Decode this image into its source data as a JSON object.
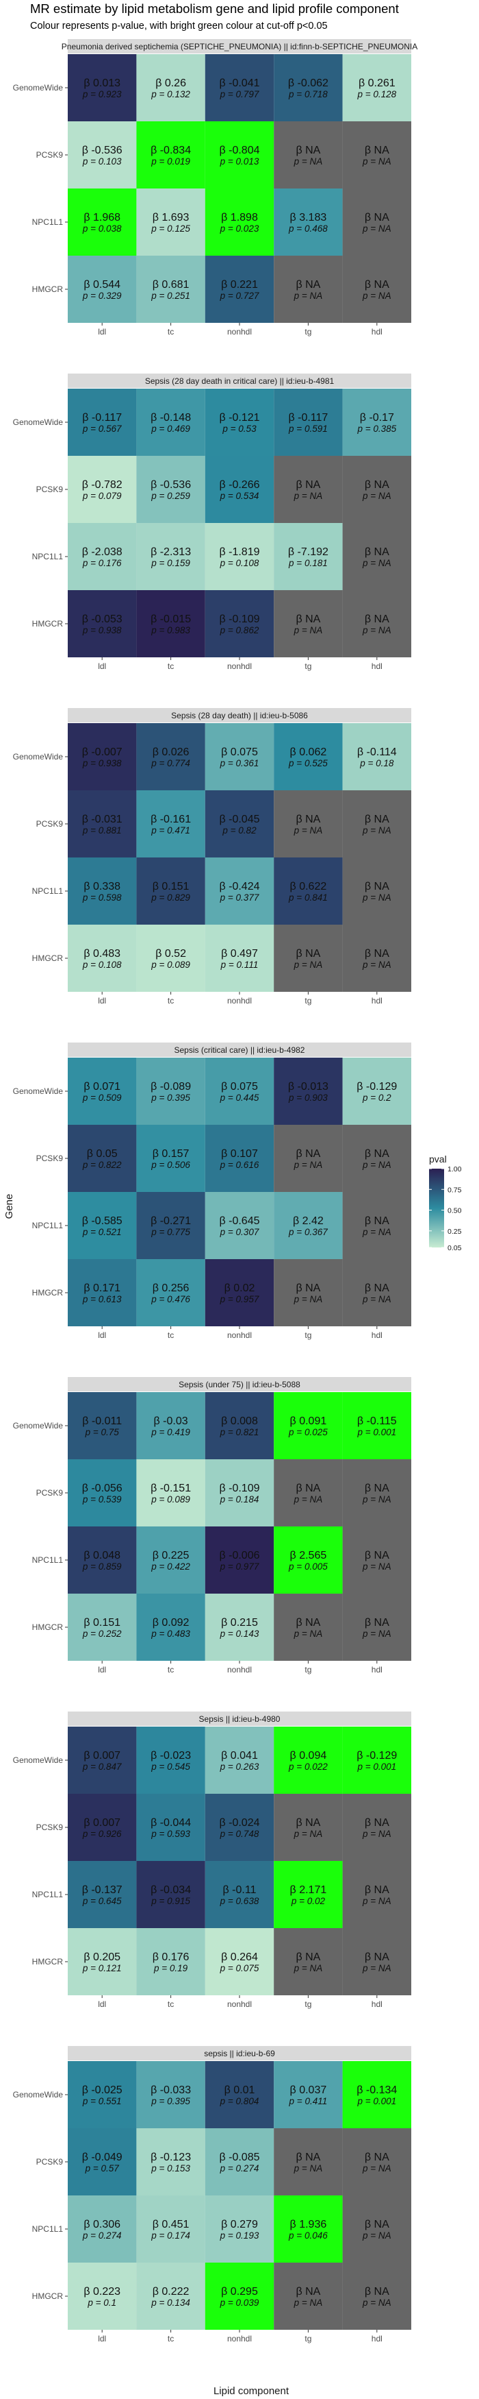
{
  "title": "MR estimate by lipid metabolism gene and lipid profile component",
  "subtitle": "Colour represents p-value, with bright green colour at cut-off p<0.05",
  "chart_data": {
    "type": "heatmap",
    "xlabel": "Lipid component",
    "ylabel": "Gene",
    "x_categories": [
      "ldl",
      "tc",
      "nonhdl",
      "tg",
      "hdl"
    ],
    "y_categories": [
      "GenomeWide",
      "PCSK9",
      "NPC1L1",
      "HMGCR"
    ],
    "cutoff": 0.05,
    "legend": {
      "title": "pval",
      "ticks": [
        "1.00",
        "0.75",
        "0.50",
        "0.25",
        "0.05"
      ],
      "colors": {
        "low": "#2b1f52",
        "mid": "#2d8ca0",
        "high": "#c8ecd2",
        "cutoff": "#1aff0a",
        "na": "#666666"
      }
    },
    "panels": [
      {
        "strip": "Pneumonia derived septichemia (SEPTICHE_PNEUMONIA) || id:finn-b-SEPTICHE_PNEUMONIA",
        "cells": [
          [
            [
              "β 0.013",
              "p = 0.923",
              0.923
            ],
            [
              "β 0.26",
              "p = 0.132",
              0.132
            ],
            [
              "β -0.041",
              "p = 0.797",
              0.797
            ],
            [
              "β -0.062",
              "p = 0.718",
              0.718
            ],
            [
              "β 0.261",
              "p = 0.128",
              0.128
            ]
          ],
          [
            [
              "β -0.536",
              "p = 0.103",
              0.103
            ],
            [
              "β -0.834",
              "p = 0.019",
              0.019
            ],
            [
              "β -0.804",
              "p = 0.013",
              0.013
            ],
            [
              "β NA",
              "p = NA",
              null
            ],
            [
              "β NA",
              "p = NA",
              null
            ]
          ],
          [
            [
              "β 1.968",
              "p = 0.038",
              0.038
            ],
            [
              "β 1.693",
              "p = 0.125",
              0.125
            ],
            [
              "β 1.898",
              "p = 0.023",
              0.023
            ],
            [
              "β 3.183",
              "p = 0.468",
              0.468
            ],
            [
              "β NA",
              "p = NA",
              null
            ]
          ],
          [
            [
              "β 0.544",
              "p = 0.329",
              0.329
            ],
            [
              "β 0.681",
              "p = 0.251",
              0.251
            ],
            [
              "β 0.221",
              "p = 0.727",
              0.727
            ],
            [
              "β NA",
              "p = NA",
              null
            ],
            [
              "β NA",
              "p = NA",
              null
            ]
          ]
        ]
      },
      {
        "strip": "Sepsis (28 day death in critical care) || id:ieu-b-4981",
        "cells": [
          [
            [
              "β -0.117",
              "p = 0.567",
              0.567
            ],
            [
              "β -0.148",
              "p = 0.469",
              0.469
            ],
            [
              "β -0.121",
              "p = 0.53",
              0.53
            ],
            [
              "β -0.117",
              "p = 0.591",
              0.591
            ],
            [
              "β -0.17",
              "p = 0.385",
              0.385
            ]
          ],
          [
            [
              "β -0.782",
              "p = 0.079",
              0.079
            ],
            [
              "β -0.536",
              "p = 0.259",
              0.259
            ],
            [
              "β -0.266",
              "p = 0.534",
              0.534
            ],
            [
              "β NA",
              "p = NA",
              null
            ],
            [
              "β NA",
              "p = NA",
              null
            ]
          ],
          [
            [
              "β -2.038",
              "p = 0.176",
              0.176
            ],
            [
              "β -2.313",
              "p = 0.159",
              0.159
            ],
            [
              "β -1.819",
              "p = 0.108",
              0.108
            ],
            [
              "β -7.192",
              "p = 0.181",
              0.181
            ],
            [
              "β NA",
              "p = NA",
              null
            ]
          ],
          [
            [
              "β -0.053",
              "p = 0.938",
              0.938
            ],
            [
              "β -0.015",
              "p = 0.983",
              0.983
            ],
            [
              "β -0.109",
              "p = 0.862",
              0.862
            ],
            [
              "β NA",
              "p = NA",
              null
            ],
            [
              "β NA",
              "p = NA",
              null
            ]
          ]
        ]
      },
      {
        "strip": "Sepsis (28 day death) || id:ieu-b-5086",
        "cells": [
          [
            [
              "β -0.007",
              "p = 0.938",
              0.938
            ],
            [
              "β 0.026",
              "p = 0.774",
              0.774
            ],
            [
              "β 0.075",
              "p = 0.361",
              0.361
            ],
            [
              "β 0.062",
              "p = 0.525",
              0.525
            ],
            [
              "β -0.114",
              "p = 0.18",
              0.18
            ]
          ],
          [
            [
              "β -0.031",
              "p = 0.881",
              0.881
            ],
            [
              "β -0.161",
              "p = 0.471",
              0.471
            ],
            [
              "β -0.045",
              "p = 0.82",
              0.82
            ],
            [
              "β NA",
              "p = NA",
              null
            ],
            [
              "β NA",
              "p = NA",
              null
            ]
          ],
          [
            [
              "β 0.338",
              "p = 0.598",
              0.598
            ],
            [
              "β 0.151",
              "p = 0.829",
              0.829
            ],
            [
              "β -0.424",
              "p = 0.377",
              0.377
            ],
            [
              "β 0.622",
              "p = 0.841",
              0.841
            ],
            [
              "β NA",
              "p = NA",
              null
            ]
          ],
          [
            [
              "β 0.483",
              "p = 0.108",
              0.108
            ],
            [
              "β 0.52",
              "p = 0.089",
              0.089
            ],
            [
              "β 0.497",
              "p = 0.111",
              0.111
            ],
            [
              "β NA",
              "p = NA",
              null
            ],
            [
              "β NA",
              "p = NA",
              null
            ]
          ]
        ]
      },
      {
        "strip": "Sepsis (critical care) || id:ieu-b-4982",
        "cells": [
          [
            [
              "β 0.071",
              "p = 0.509",
              0.509
            ],
            [
              "β -0.089",
              "p = 0.395",
              0.395
            ],
            [
              "β 0.075",
              "p = 0.445",
              0.445
            ],
            [
              "β -0.013",
              "p = 0.903",
              0.903
            ],
            [
              "β -0.129",
              "p = 0.2",
              0.2
            ]
          ],
          [
            [
              "β 0.05",
              "p = 0.822",
              0.822
            ],
            [
              "β 0.157",
              "p = 0.506",
              0.506
            ],
            [
              "β 0.107",
              "p = 0.616",
              0.616
            ],
            [
              "β NA",
              "p = NA",
              null
            ],
            [
              "β NA",
              "p = NA",
              null
            ]
          ],
          [
            [
              "β -0.585",
              "p = 0.521",
              0.521
            ],
            [
              "β -0.271",
              "p = 0.775",
              0.775
            ],
            [
              "β -0.645",
              "p = 0.307",
              0.307
            ],
            [
              "β 2.42",
              "p = 0.367",
              0.367
            ],
            [
              "β NA",
              "p = NA",
              null
            ]
          ],
          [
            [
              "β 0.171",
              "p = 0.613",
              0.613
            ],
            [
              "β 0.256",
              "p = 0.476",
              0.476
            ],
            [
              "β 0.02",
              "p = 0.957",
              0.957
            ],
            [
              "β NA",
              "p = NA",
              null
            ],
            [
              "β NA",
              "p = NA",
              null
            ]
          ]
        ]
      },
      {
        "strip": "Sepsis (under 75) || id:ieu-b-5088",
        "cells": [
          [
            [
              "β -0.011",
              "p = 0.75",
              0.75
            ],
            [
              "β -0.03",
              "p = 0.419",
              0.419
            ],
            [
              "β 0.008",
              "p = 0.821",
              0.821
            ],
            [
              "β 0.091",
              "p = 0.025",
              0.025
            ],
            [
              "β -0.115",
              "p = 0.001",
              0.001
            ]
          ],
          [
            [
              "β -0.056",
              "p = 0.539",
              0.539
            ],
            [
              "β -0.151",
              "p = 0.089",
              0.089
            ],
            [
              "β -0.109",
              "p = 0.184",
              0.184
            ],
            [
              "β NA",
              "p = NA",
              null
            ],
            [
              "β NA",
              "p = NA",
              null
            ]
          ],
          [
            [
              "β 0.048",
              "p = 0.859",
              0.859
            ],
            [
              "β 0.225",
              "p = 0.422",
              0.422
            ],
            [
              "β -0.006",
              "p = 0.977",
              0.977
            ],
            [
              "β 2.565",
              "p = 0.005",
              0.005
            ],
            [
              "β NA",
              "p = NA",
              null
            ]
          ],
          [
            [
              "β 0.151",
              "p = 0.252",
              0.252
            ],
            [
              "β 0.092",
              "p = 0.483",
              0.483
            ],
            [
              "β 0.215",
              "p = 0.143",
              0.143
            ],
            [
              "β NA",
              "p = NA",
              null
            ],
            [
              "β NA",
              "p = NA",
              null
            ]
          ]
        ]
      },
      {
        "strip": "Sepsis || id:ieu-b-4980",
        "cells": [
          [
            [
              "β 0.007",
              "p = 0.847",
              0.847
            ],
            [
              "β -0.023",
              "p = 0.545",
              0.545
            ],
            [
              "β 0.041",
              "p = 0.263",
              0.263
            ],
            [
              "β 0.094",
              "p = 0.022",
              0.022
            ],
            [
              "β -0.129",
              "p = 0.001",
              0.001
            ]
          ],
          [
            [
              "β 0.007",
              "p = 0.926",
              0.926
            ],
            [
              "β -0.044",
              "p = 0.593",
              0.593
            ],
            [
              "β -0.024",
              "p = 0.748",
              0.748
            ],
            [
              "β NA",
              "p = NA",
              null
            ],
            [
              "β NA",
              "p = NA",
              null
            ]
          ],
          [
            [
              "β -0.137",
              "p = 0.645",
              0.645
            ],
            [
              "β -0.034",
              "p = 0.915",
              0.915
            ],
            [
              "β -0.11",
              "p = 0.638",
              0.638
            ],
            [
              "β 2.171",
              "p = 0.02",
              0.02
            ],
            [
              "β NA",
              "p = NA",
              null
            ]
          ],
          [
            [
              "β 0.205",
              "p = 0.121",
              0.121
            ],
            [
              "β 0.176",
              "p = 0.19",
              0.19
            ],
            [
              "β 0.264",
              "p = 0.075",
              0.075
            ],
            [
              "β NA",
              "p = NA",
              null
            ],
            [
              "β NA",
              "p = NA",
              null
            ]
          ]
        ]
      },
      {
        "strip": "sepsis || id:ieu-b-69",
        "cells": [
          [
            [
              "β -0.025",
              "p = 0.551",
              0.551
            ],
            [
              "β -0.033",
              "p = 0.395",
              0.395
            ],
            [
              "β 0.01",
              "p = 0.804",
              0.804
            ],
            [
              "β 0.037",
              "p = 0.411",
              0.411
            ],
            [
              "β -0.134",
              "p = 0.001",
              0.001
            ]
          ],
          [
            [
              "β -0.049",
              "p = 0.57",
              0.57
            ],
            [
              "β -0.123",
              "p = 0.153",
              0.153
            ],
            [
              "β -0.085",
              "p = 0.274",
              0.274
            ],
            [
              "β NA",
              "p = NA",
              null
            ],
            [
              "β NA",
              "p = NA",
              null
            ]
          ],
          [
            [
              "β 0.306",
              "p = 0.274",
              0.274
            ],
            [
              "β 0.451",
              "p = 0.174",
              0.174
            ],
            [
              "β 0.279",
              "p = 0.193",
              0.193
            ],
            [
              "β 1.936",
              "p = 0.046",
              0.046
            ],
            [
              "β NA",
              "p = NA",
              null
            ]
          ],
          [
            [
              "β 0.223",
              "p = 0.1",
              0.1
            ],
            [
              "β 0.222",
              "p = 0.134",
              0.134
            ],
            [
              "β 0.295",
              "p = 0.039",
              0.039
            ],
            [
              "β NA",
              "p = NA",
              null
            ],
            [
              "β NA",
              "p = NA",
              null
            ]
          ]
        ]
      }
    ]
  }
}
